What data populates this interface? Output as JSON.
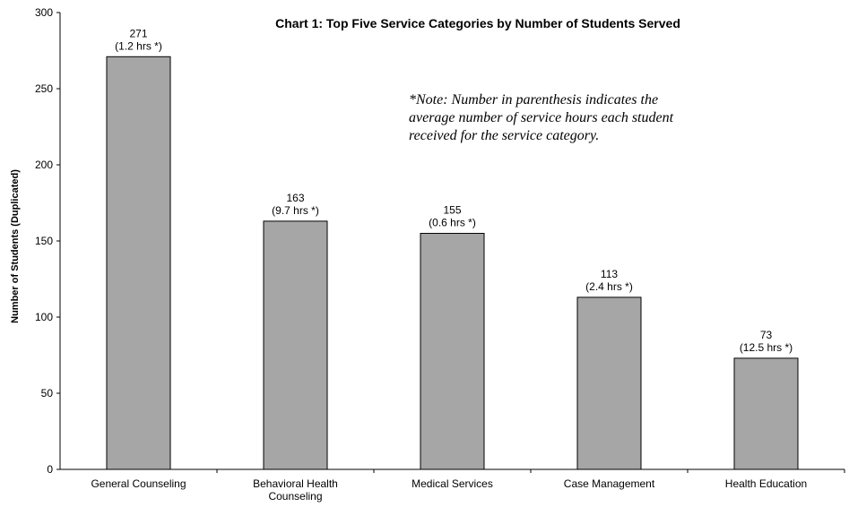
{
  "chart_data": {
    "type": "bar",
    "title": "Chart 1: Top Five Service Categories by Number of Students Served",
    "ylabel": "Number of Students (Duplicated)",
    "xlabel": "",
    "ylim": [
      0,
      300
    ],
    "yticks": [
      0,
      50,
      100,
      150,
      200,
      250,
      300
    ],
    "grid": false,
    "bar_color": "#a6a6a6",
    "categories": [
      [
        "General Counseling"
      ],
      [
        "Behavioral Health",
        "Counseling"
      ],
      [
        "Medical Services"
      ],
      [
        "Case Management"
      ],
      [
        "Health Education"
      ]
    ],
    "values": [
      271,
      163,
      155,
      113,
      73
    ],
    "value_labels": [
      "271",
      "163",
      "155",
      "113",
      "73"
    ],
    "hours_labels": [
      "(1.2 hrs *)",
      "(9.7 hrs *)",
      "(0.6 hrs *)",
      "(2.4 hrs *)",
      "(12.5 hrs *)"
    ],
    "note_lines": [
      "*Note: Number in parenthesis indicates the",
      "average number of service hours each student",
      "received for the service category."
    ]
  }
}
